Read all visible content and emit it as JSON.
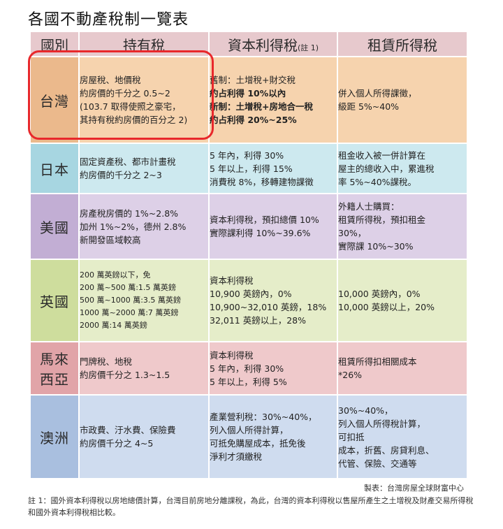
{
  "title": "各國不動產稅制一覽表",
  "header": {
    "col_country": "國別",
    "col_holding": "持有稅",
    "col_capital": "資本利得稅",
    "col_capital_note": "(註 1)",
    "col_rental": "租賃所得稅"
  },
  "rows": [
    {
      "country": "台灣",
      "holding": [
        "房屋稅、地價稅",
        "約房價的千分之 0.5~2",
        "(103.7 取得使照之豪宅，",
        "其持有稅約房價的百分之 2)"
      ],
      "capital": [
        "舊制：土增稅+財交稅",
        "約占利得 10%以內",
        "新制：土增稅+房地合一稅",
        "約占利得 20%~25%"
      ],
      "rental": [
        "併入個人所得課徵，",
        "級距 5%~40%"
      ]
    },
    {
      "country": "日本",
      "holding": [
        "固定資產稅、都市計畫稅",
        "約房價的千分之 2~3"
      ],
      "capital": [
        "5 年內，利得 30%",
        "5 年以上，利得 15%",
        "消費稅 8%，移轉建物課徵"
      ],
      "rental": [
        "租金收入被一併計算在",
        "屋主的總收入中，累進稅",
        "率 5%~40%課稅。"
      ]
    },
    {
      "country": "美國",
      "holding": [
        "房產稅房價的 1%~2.8%",
        "加州 1%~2%，德州 2.8%",
        "新開發區域較高"
      ],
      "capital": [
        "資本利得稅，預扣總價 10%",
        "實際課利得 10%~39.6%"
      ],
      "rental": [
        "外籍人士購買：",
        "租賃所得稅，預扣租金",
        "30%，",
        "實際課 10%~30%"
      ]
    },
    {
      "country": "英國",
      "holding": [
        "200 萬英鎊以下，免",
        "200 萬~500 萬:1.5 萬英鎊",
        "500 萬~1000 萬:3.5 萬英鎊",
        "1000 萬~2000 萬:7 萬英鎊",
        "2000 萬:14 萬英鎊"
      ],
      "capital": [
        "資本利得稅",
        "10,900 英鎊內，0%",
        "10,900~32,010 英鎊，18%",
        "32,011 英鎊以上，28%"
      ],
      "rental": [
        "10,000 英鎊內，0%",
        "10,000 英鎊以上，20%"
      ]
    },
    {
      "country_line1": "馬來",
      "country_line2": "西亞",
      "holding": [
        "門牌稅、地稅",
        "約房價千分之 1.3~1.5"
      ],
      "capital": [
        "資本利得稅",
        "5 年內，利得 30%",
        "5 年以上，利得 5%"
      ],
      "rental": [
        "租賃所得扣相關成本",
        "*26%"
      ]
    },
    {
      "country": "澳洲",
      "holding": [
        "市政費、汙水費、保險費",
        "約房價千分之 4~5"
      ],
      "capital": [
        "產業營利稅：30%~40%，",
        "列入個人所得計算，",
        "可抵免購屋成本，抵免後",
        "淨利才須繳稅"
      ],
      "rental": [
        "30%~40%，",
        "列入個人所得稅計算，",
        "可扣抵",
        "成本，折舊、房貸利息、",
        "代管、保險、交通等"
      ]
    }
  ],
  "credit": "製表：台灣房屋全球財富中心",
  "footnote": "註 1：國外資本利得稅以房地總價計算，台灣目前房地分離課稅，為此，台灣的資本利得稅以售屋所產生之土增稅及財產交易所得稅和國外資本利得稅相比較。",
  "colors": {
    "header_bg": "#e7c9cd",
    "taiwan": "#f6d3ae",
    "japan": "#cde9ef",
    "usa": "#ddd0e7",
    "uk": "#e5edc9",
    "malaysia": "#efc9cb",
    "australia": "#cfdcef",
    "highlight_ring": "#e8282b"
  }
}
